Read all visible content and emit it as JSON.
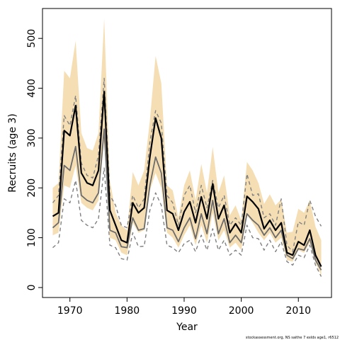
{
  "chart_data": {
    "type": "line",
    "title": "",
    "xlabel": "Year",
    "ylabel": "Recruits (age 3)",
    "caption": "stockassessment.org,  NS  saithe  7  exlds  age1,  r6512",
    "xlim": [
      1965.2,
      2015.8
    ],
    "ylim": [
      -20,
      560
    ],
    "x_ticks": [
      1970,
      1980,
      1990,
      2000,
      2010
    ],
    "x_tick_labels": [
      "1970",
      "1980",
      "1990",
      "2000",
      "2010"
    ],
    "y_ticks": [
      0,
      100,
      200,
      300,
      400,
      500
    ],
    "y_tick_labels": [
      "0",
      "100",
      "200",
      "300",
      "400",
      "500"
    ],
    "grid": false,
    "colors": {
      "band": "#f5deb3",
      "estimate": "#000000",
      "inner_line": "#6b6b6b",
      "dashed": "#808080",
      "frame": "#000000"
    },
    "x": [
      1967,
      1968,
      1969,
      1970,
      1971,
      1972,
      1973,
      1974,
      1975,
      1976,
      1977,
      1978,
      1979,
      1980,
      1981,
      1982,
      1983,
      1984,
      1985,
      1986,
      1987,
      1988,
      1989,
      1990,
      1991,
      1992,
      1993,
      1994,
      1995,
      1996,
      1997,
      1998,
      1999,
      2000,
      2001,
      2002,
      2003,
      2004,
      2005,
      2006,
      2007,
      2008,
      2009,
      2010,
      2011,
      2012,
      2013,
      2014
    ],
    "band_upper": [
      200,
      210,
      435,
      420,
      495,
      310,
      280,
      275,
      310,
      540,
      215,
      150,
      125,
      115,
      232,
      205,
      235,
      335,
      465,
      410,
      205,
      195,
      140,
      205,
      235,
      175,
      248,
      190,
      282,
      190,
      225,
      145,
      165,
      135,
      252,
      235,
      210,
      168,
      187,
      165,
      177,
      110,
      112,
      158,
      150,
      175,
      122,
      95
    ],
    "band_lower": [
      105,
      110,
      205,
      200,
      245,
      170,
      160,
      155,
      175,
      295,
      100,
      95,
      70,
      65,
      130,
      110,
      115,
      195,
      230,
      200,
      110,
      100,
      80,
      105,
      125,
      85,
      125,
      90,
      150,
      95,
      115,
      80,
      90,
      75,
      145,
      130,
      110,
      95,
      110,
      90,
      100,
      55,
      52,
      75,
      70,
      90,
      50,
      25
    ],
    "estimate": [
      143,
      150,
      315,
      305,
      365,
      230,
      210,
      205,
      235,
      393,
      155,
      125,
      95,
      90,
      170,
      150,
      160,
      262,
      340,
      300,
      155,
      148,
      115,
      152,
      172,
      130,
      182,
      138,
      208,
      138,
      165,
      110,
      128,
      110,
      183,
      172,
      158,
      118,
      135,
      115,
      130,
      70,
      65,
      92,
      85,
      115,
      65,
      42
    ],
    "inner_line": [
      120,
      130,
      245,
      235,
      283,
      185,
      175,
      170,
      190,
      318,
      115,
      110,
      82,
      80,
      140,
      115,
      118,
      205,
      262,
      230,
      120,
      115,
      92,
      120,
      140,
      98,
      148,
      108,
      175,
      108,
      138,
      90,
      105,
      90,
      148,
      135,
      125,
      105,
      120,
      100,
      115,
      65,
      58,
      78,
      75,
      98,
      55,
      35
    ],
    "dashed_upper": [
      170,
      185,
      345,
      325,
      385,
      250,
      225,
      220,
      265,
      420,
      185,
      165,
      125,
      120,
      185,
      160,
      178,
      292,
      355,
      330,
      185,
      170,
      125,
      185,
      205,
      150,
      205,
      160,
      215,
      160,
      185,
      125,
      140,
      125,
      228,
      185,
      188,
      140,
      148,
      125,
      178,
      85,
      72,
      132,
      125,
      175,
      143,
      123
    ],
    "dashed_lower": [
      80,
      90,
      178,
      170,
      215,
      135,
      125,
      120,
      138,
      240,
      85,
      80,
      58,
      55,
      110,
      82,
      83,
      155,
      190,
      165,
      85,
      80,
      70,
      88,
      95,
      72,
      105,
      75,
      118,
      75,
      95,
      65,
      75,
      65,
      125,
      100,
      98,
      75,
      95,
      72,
      92,
      52,
      45,
      65,
      60,
      85,
      45,
      22
    ]
  }
}
